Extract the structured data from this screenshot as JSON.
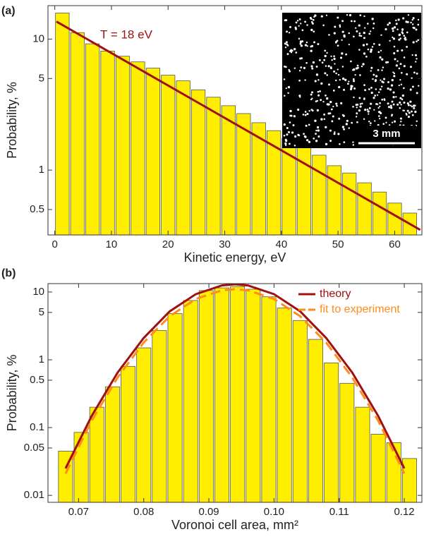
{
  "chart_data": [
    {
      "type": "histogram",
      "panel_label": "(a)",
      "x_label": "Kinetic energy, eV",
      "y_label": "Probability, %",
      "log_y": true,
      "color": "#ffee00",
      "bins": [
        0,
        2.67,
        5.33,
        8,
        10.67,
        13.33,
        16,
        18.67,
        21.33,
        24,
        26.67,
        29.33,
        32,
        34.67,
        37.33,
        40,
        42.67,
        45.33,
        48,
        50.67,
        53.33,
        56,
        58.67,
        61.33,
        64
      ],
      "values": [
        15.8,
        11.2,
        9.2,
        8.1,
        7.4,
        6.7,
        6.0,
        5.3,
        4.8,
        4.1,
        3.6,
        3.1,
        2.7,
        2.3,
        2.0,
        1.75,
        1.5,
        1.3,
        1.08,
        0.95,
        0.8,
        0.68,
        0.56,
        0.47
      ],
      "curves": [
        {
          "color": "#a01010",
          "x": [
            0.3,
            64.5
          ],
          "values": [
            13.6,
            0.35
          ]
        }
      ],
      "annotation": "T = 18 eV",
      "inset_label": "3 mm",
      "xlim": [
        -1.2,
        64.8
      ],
      "ylim": [
        0.32,
        18
      ],
      "xticks": [
        0,
        10,
        20,
        30,
        40,
        50,
        60
      ],
      "yticks": [
        0.5,
        1,
        5,
        10
      ]
    },
    {
      "type": "histogram",
      "panel_label": "(b)",
      "x_label": "Voronoi cell area, mm²",
      "y_label": "Probability, %",
      "log_y": true,
      "color": "#ffee00",
      "legend": "upper right",
      "bins": [
        0.0668,
        0.0692,
        0.0716,
        0.074,
        0.0764,
        0.0788,
        0.0812,
        0.0836,
        0.086,
        0.0884,
        0.0908,
        0.0932,
        0.0956,
        0.098,
        0.1004,
        0.1028,
        0.1052,
        0.1076,
        0.11,
        0.1124,
        0.1148,
        0.1172,
        0.1196,
        0.122
      ],
      "values": [
        0.045,
        0.085,
        0.2,
        0.4,
        0.8,
        1.5,
        2.7,
        4.8,
        7.5,
        10.5,
        11.5,
        12,
        11,
        8.5,
        5.8,
        3.8,
        2,
        0.9,
        0.45,
        0.2,
        0.08,
        0.06,
        0.035
      ],
      "curves": [
        {
          "name": "theory",
          "color": "#a01010",
          "x": [
            0.068,
            0.072,
            0.076,
            0.08,
            0.084,
            0.088,
            0.092,
            0.094,
            0.096,
            0.1,
            0.104,
            0.108,
            0.112,
            0.116,
            0.12
          ],
          "values": [
            0.025,
            0.148,
            0.65,
            2.1,
            5.2,
            9.3,
            12.5,
            13,
            12.5,
            9.3,
            5.2,
            2.1,
            0.65,
            0.148,
            0.025
          ]
        },
        {
          "name": "fit to experiment",
          "color": "#ff8c1a",
          "dashed": true,
          "x": [
            0.068,
            0.072,
            0.076,
            0.08,
            0.084,
            0.088,
            0.092,
            0.094,
            0.096,
            0.1,
            0.104,
            0.108,
            0.112,
            0.116,
            0.12
          ],
          "values": [
            0.021,
            0.126,
            0.55,
            1.8,
            4.4,
            7.9,
            10.6,
            11,
            10.6,
            7.9,
            4.4,
            1.8,
            0.55,
            0.126,
            0.021
          ]
        }
      ],
      "xlim": [
        0.0653,
        0.1227
      ],
      "ylim": [
        0.0079,
        13.3
      ],
      "xticks": [
        0.07,
        0.08,
        0.09,
        {
          "value": 0.1,
          "label": "0.10"
        },
        0.11,
        0.12
      ],
      "yticks": [
        0.01,
        0.05,
        0.1,
        0.5,
        1,
        5,
        10
      ]
    }
  ]
}
